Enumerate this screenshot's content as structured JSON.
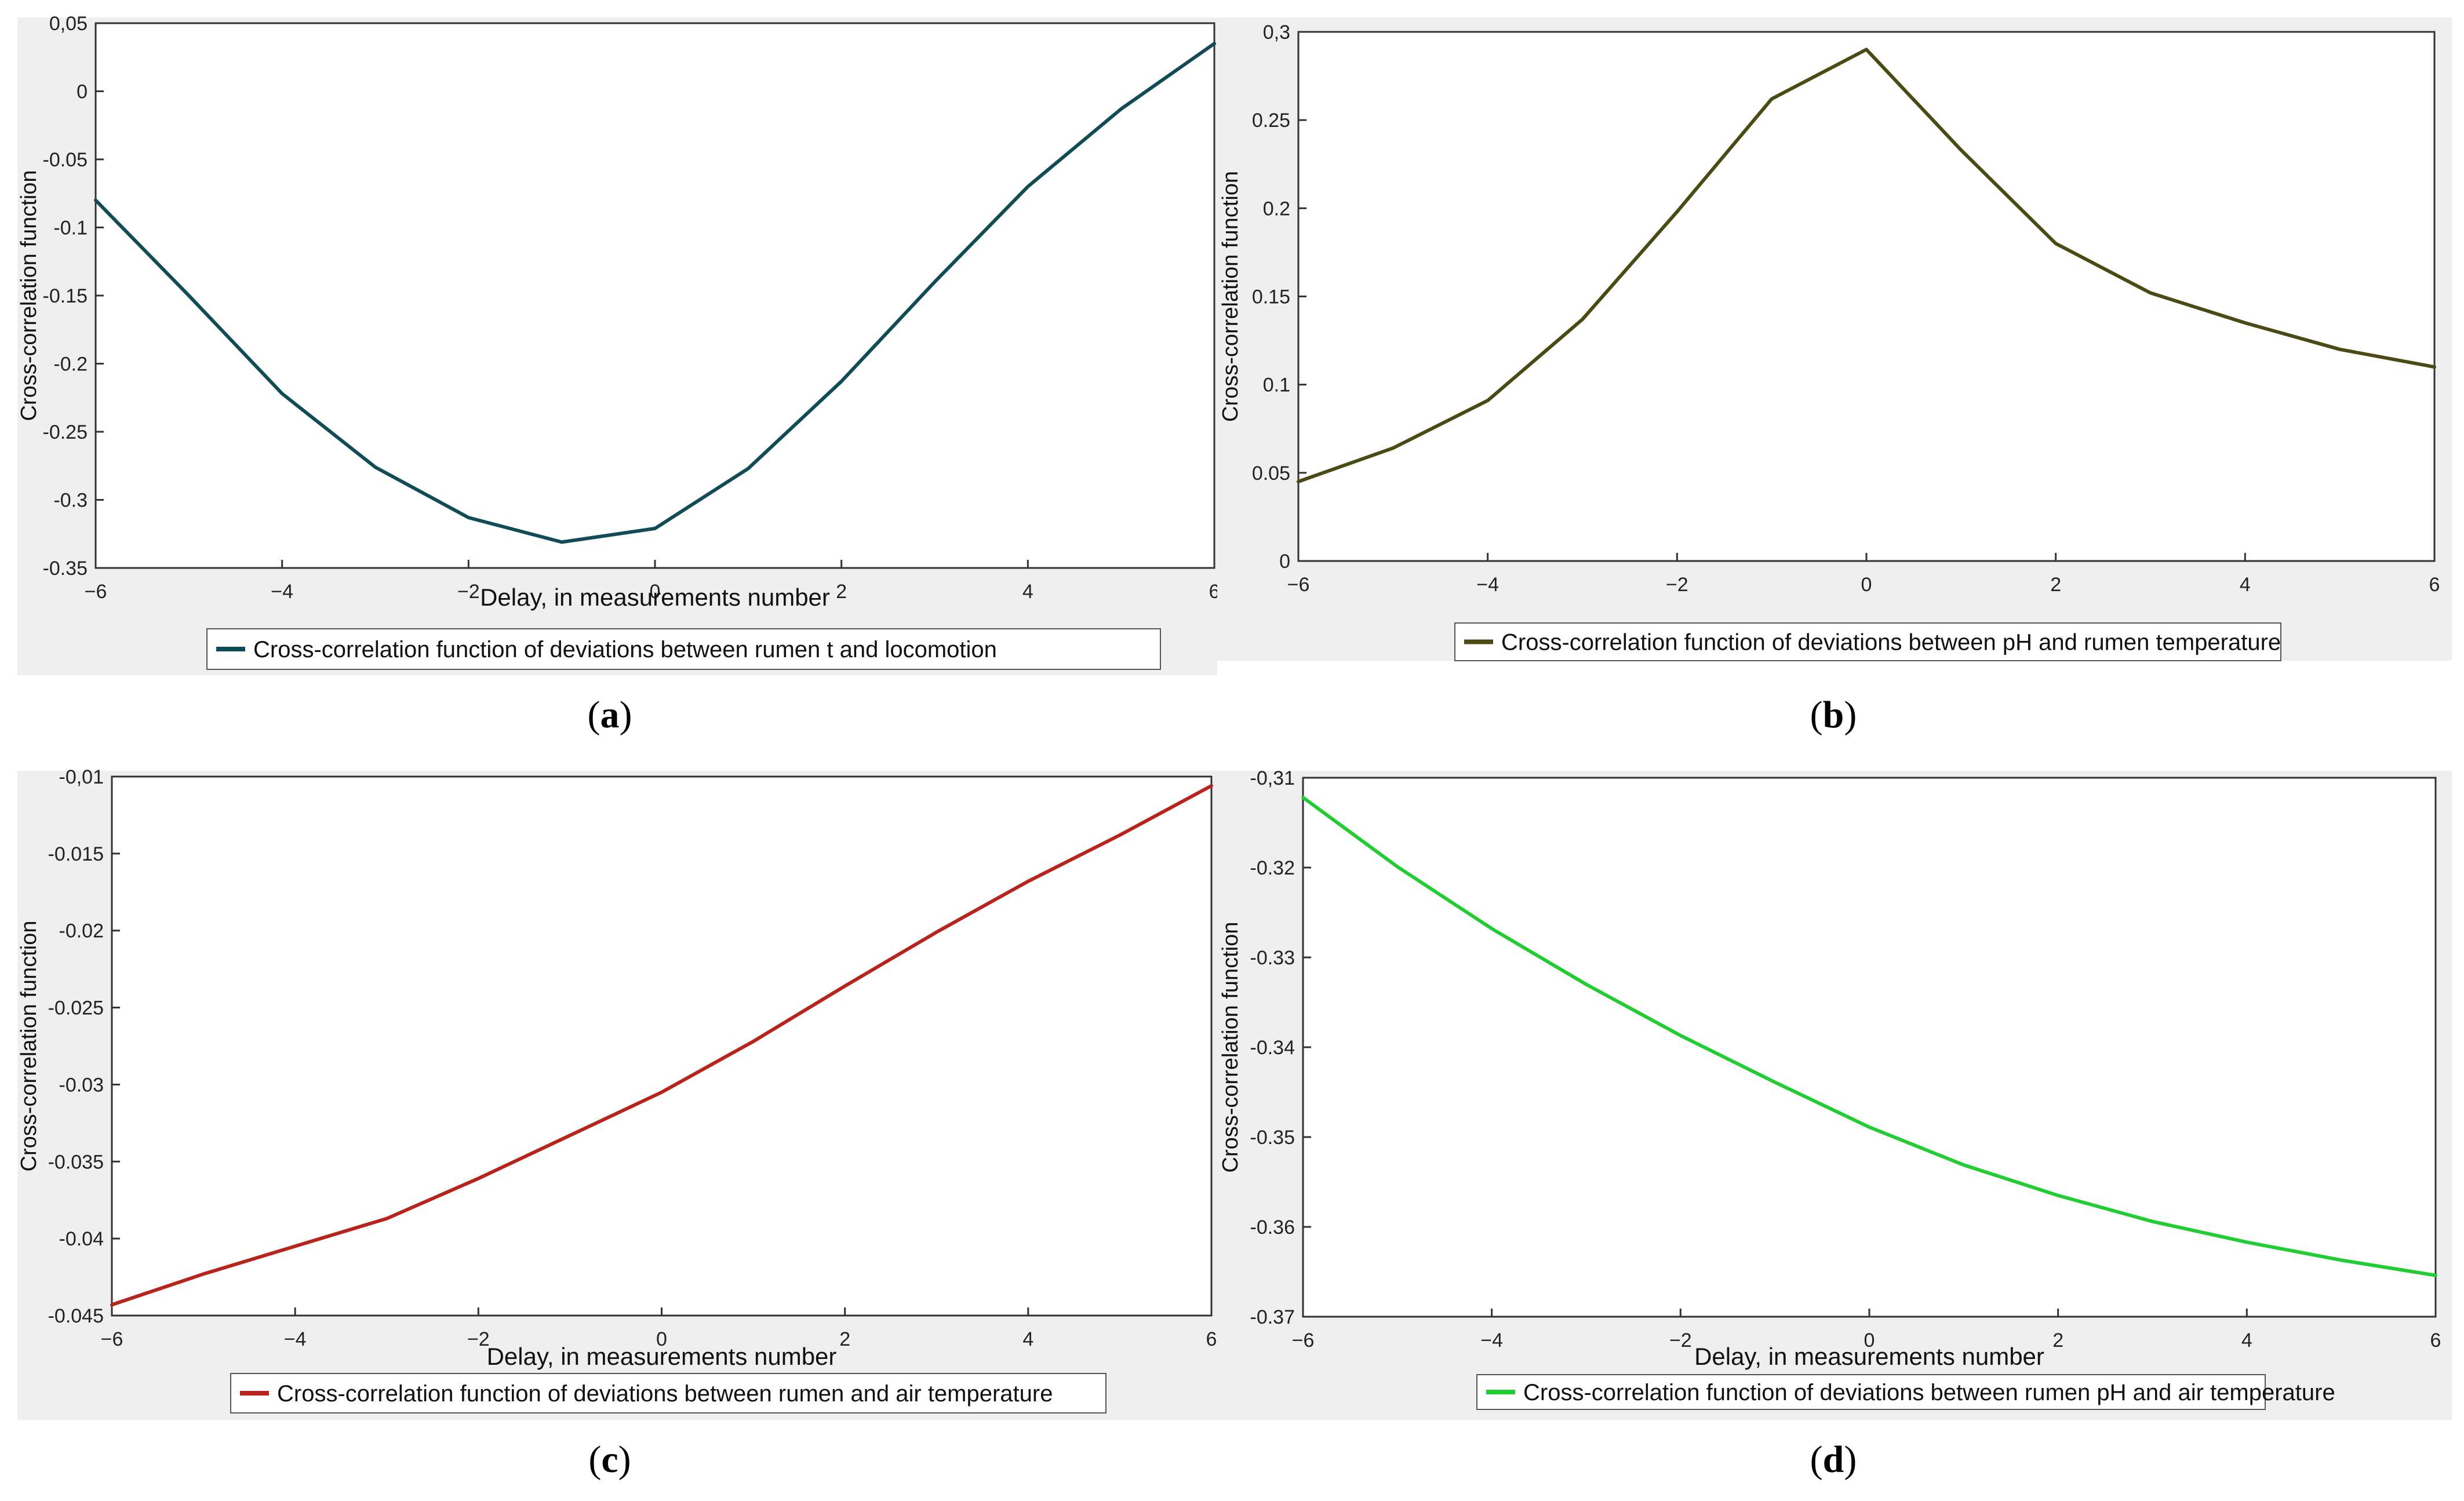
{
  "chart_data": [
    {
      "type": "line",
      "panel_label": "a",
      "xlabel": "Delay, in measurements number",
      "ylabel": "Cross-correlation function",
      "xlim": [
        -6,
        6
      ],
      "ylim": [
        -0.35,
        0.05
      ],
      "x_ticks": [
        "-6",
        "-4",
        "-2",
        "0",
        "2",
        "4",
        "6"
      ],
      "y_ticks": [
        "0,05",
        "0",
        "-0.05",
        "-0.1",
        "-0.15",
        "-0.2",
        "-0.25",
        "-0.3",
        "-0.35"
      ],
      "legend": "Cross-correlation function of deviations between rumen t and locomotion",
      "color": "#114b55",
      "series": [
        {
          "name": "Cross-correlation function of deviations between rumen t and locomotion",
          "x": [
            -6,
            -5,
            -4,
            -3,
            -2,
            -1,
            0,
            1,
            2,
            3,
            4,
            5,
            6
          ],
          "values": [
            -0.08,
            -0.15,
            -0.222,
            -0.276,
            -0.313,
            -0.331,
            -0.321,
            -0.277,
            -0.213,
            -0.14,
            -0.07,
            -0.013,
            0.035
          ]
        }
      ]
    },
    {
      "type": "line",
      "panel_label": "b",
      "xlabel": "Delay, in measurements number",
      "ylabel": "Cross-correlation function",
      "xlim": [
        -6,
        6
      ],
      "ylim": [
        0,
        0.3
      ],
      "x_ticks": [
        "-6",
        "-4",
        "-2",
        "0",
        "2",
        "4",
        "6"
      ],
      "y_ticks": [
        "0,3",
        "0.25",
        "0.2",
        "0.15",
        "0.1",
        "0.05",
        "0"
      ],
      "legend": "Cross-correlation function of deviations between pH and rumen temperature",
      "color": "#4a4a14",
      "series": [
        {
          "name": "Cross-correlation function of deviations between pH and rumen temperature",
          "x": [
            -6,
            -5,
            -4,
            -3,
            -2,
            -1,
            0,
            1,
            2,
            3,
            4,
            5,
            6
          ],
          "values": [
            0.045,
            0.064,
            0.091,
            0.137,
            0.198,
            0.262,
            0.29,
            0.233,
            0.18,
            0.152,
            0.135,
            0.12,
            0.11
          ]
        }
      ]
    },
    {
      "type": "line",
      "panel_label": "c",
      "xlabel": "Delay, in measurements number",
      "ylabel": "Cross-correlation function",
      "xlim": [
        -6,
        6
      ],
      "ylim": [
        -0.045,
        -0.01
      ],
      "x_ticks": [
        "-6",
        "-4",
        "-2",
        "0",
        "2",
        "4",
        "6"
      ],
      "y_ticks": [
        "-0,01",
        "-0.015",
        "-0.02",
        "-0.025",
        "-0.03",
        "-0.035",
        "-0.04",
        "-0.045"
      ],
      "legend": "Cross-correlation function of deviations between rumen and air temperature",
      "color": "#b8231c",
      "series": [
        {
          "name": "Cross-correlation function of deviations between rumen and air temperature",
          "x": [
            -6,
            -5,
            -4,
            -3,
            -2,
            -1,
            0,
            1,
            2,
            3,
            4,
            5,
            6
          ],
          "values": [
            -0.0443,
            -0.0423,
            -0.0405,
            -0.0387,
            -0.0361,
            -0.0333,
            -0.0305,
            -0.0272,
            -0.0236,
            -0.0201,
            -0.0168,
            -0.0138,
            -0.0106
          ]
        }
      ]
    },
    {
      "type": "line",
      "panel_label": "d",
      "xlabel": "Delay, in measurements number",
      "ylabel": "Cross-correlation function",
      "xlim": [
        -6,
        6
      ],
      "ylim": [
        -0.37,
        -0.31
      ],
      "x_ticks": [
        "-6",
        "-4",
        "-2",
        "0",
        "2",
        "4",
        "6"
      ],
      "y_ticks": [
        "-0,31",
        "-0.32",
        "-0.33",
        "-0.34",
        "-0.35",
        "-0.36",
        "-0.37"
      ],
      "legend": "Cross-correlation function of deviations between rumen pH and air temperature",
      "color": "#22cc33",
      "series": [
        {
          "name": "Cross-correlation function of deviations between rumen pH and air temperature",
          "x": [
            -6,
            -5,
            -4,
            -3,
            -2,
            -1,
            0,
            1,
            2,
            3,
            4,
            5,
            6
          ],
          "values": [
            -0.3122,
            -0.3199,
            -0.3268,
            -0.333,
            -0.3387,
            -0.3439,
            -0.3489,
            -0.3531,
            -0.3565,
            -0.3594,
            -0.3617,
            -0.3637,
            -0.3654
          ]
        }
      ]
    }
  ]
}
